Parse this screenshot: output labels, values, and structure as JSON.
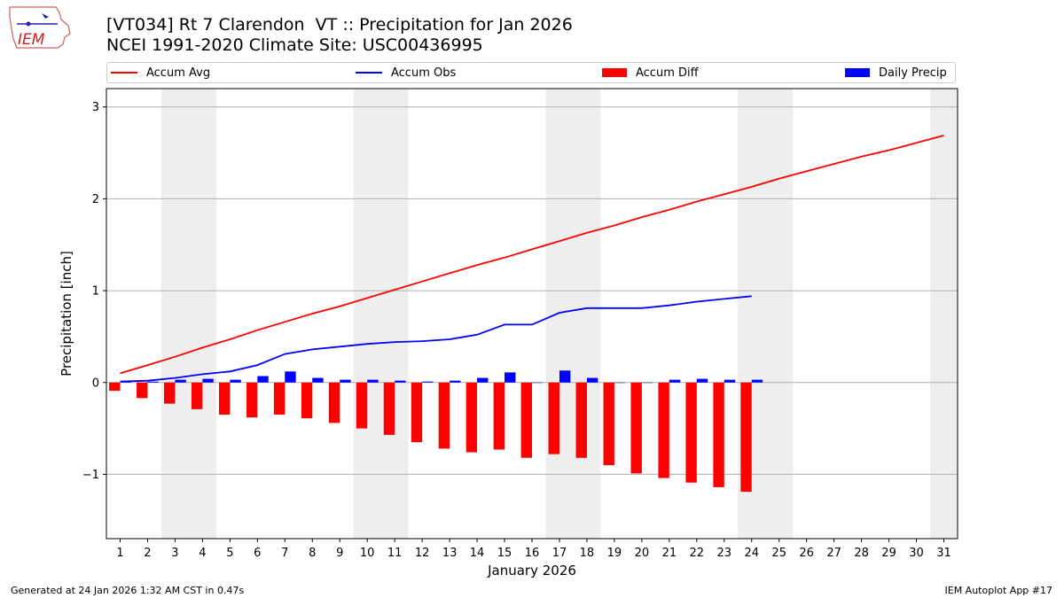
{
  "logo": {
    "text": "IEM"
  },
  "title_line1": "[VT034] Rt 7 Clarendon  VT :: Precipitation for Jan 2026",
  "title_line2": "NCEI 1991-2020 Climate Site: USC00436995",
  "footer_left": "Generated at 24 Jan 2026 1:32 AM CST in 0.47s",
  "footer_right": "IEM Autoplot App #17",
  "colors": {
    "avg": "#ff0000",
    "obs": "#0000ff",
    "diff": "#ff0000",
    "daily": "#0000ff",
    "weekend": "#eeeeee",
    "grid": "#b0b0b0"
  },
  "chart_data": {
    "type": "bar",
    "title": "[VT034] Rt 7 Clarendon  VT :: Precipitation for Jan 2026",
    "subtitle": "NCEI 1991-2020 Climate Site: USC00436995",
    "xlabel": "January 2026",
    "ylabel": "Precipitation [inch]",
    "xlim": [
      0.5,
      31.5
    ],
    "ylim": [
      -1.7,
      3.2
    ],
    "yticks": [
      -1,
      0,
      1,
      2,
      3
    ],
    "ytick_labels": [
      "−1",
      "0",
      "1",
      "2",
      "3"
    ],
    "days": [
      1,
      2,
      3,
      4,
      5,
      6,
      7,
      8,
      9,
      10,
      11,
      12,
      13,
      14,
      15,
      16,
      17,
      18,
      19,
      20,
      21,
      22,
      23,
      24,
      25,
      26,
      27,
      28,
      29,
      30,
      31
    ],
    "weekend_days": [
      3,
      4,
      10,
      11,
      17,
      18,
      24,
      25,
      31
    ],
    "legend": [
      "Accum Avg",
      "Accum Obs",
      "Accum Diff",
      "Daily Precip"
    ],
    "series": [
      {
        "name": "Accum Avg",
        "kind": "line",
        "color": "#ff0000",
        "days": [
          1,
          2,
          3,
          4,
          5,
          6,
          7,
          8,
          9,
          10,
          11,
          12,
          13,
          14,
          15,
          16,
          17,
          18,
          19,
          20,
          21,
          22,
          23,
          24,
          25,
          26,
          27,
          28,
          29,
          30,
          31
        ],
        "values": [
          0.1,
          0.19,
          0.28,
          0.38,
          0.47,
          0.57,
          0.66,
          0.75,
          0.83,
          0.92,
          1.01,
          1.1,
          1.19,
          1.28,
          1.36,
          1.45,
          1.54,
          1.63,
          1.71,
          1.8,
          1.88,
          1.97,
          2.05,
          2.13,
          2.22,
          2.3,
          2.38,
          2.46,
          2.53,
          2.61,
          2.69
        ]
      },
      {
        "name": "Accum Obs",
        "kind": "line",
        "color": "#0000ff",
        "days": [
          1,
          2,
          3,
          4,
          5,
          6,
          7,
          8,
          9,
          10,
          11,
          12,
          13,
          14,
          15,
          16,
          17,
          18,
          19,
          20,
          21,
          22,
          23,
          24
        ],
        "values": [
          0.01,
          0.02,
          0.05,
          0.09,
          0.12,
          0.19,
          0.31,
          0.36,
          0.39,
          0.42,
          0.44,
          0.45,
          0.47,
          0.52,
          0.63,
          0.63,
          0.76,
          0.81,
          0.81,
          0.81,
          0.84,
          0.88,
          0.91,
          0.94
        ]
      },
      {
        "name": "Accum Diff",
        "kind": "bar",
        "color": "#ff0000",
        "days": [
          1,
          2,
          3,
          4,
          5,
          6,
          7,
          8,
          9,
          10,
          11,
          12,
          13,
          14,
          15,
          16,
          17,
          18,
          19,
          20,
          21,
          22,
          23,
          24
        ],
        "values": [
          -0.09,
          -0.17,
          -0.23,
          -0.29,
          -0.35,
          -0.38,
          -0.35,
          -0.39,
          -0.44,
          -0.5,
          -0.57,
          -0.65,
          -0.72,
          -0.76,
          -0.73,
          -0.82,
          -0.78,
          -0.82,
          -0.9,
          -0.99,
          -1.04,
          -1.09,
          -1.14,
          -1.19
        ]
      },
      {
        "name": "Daily Precip",
        "kind": "bar",
        "color": "#0000ff",
        "days": [
          1,
          2,
          3,
          4,
          5,
          6,
          7,
          8,
          9,
          10,
          11,
          12,
          13,
          14,
          15,
          16,
          17,
          18,
          19,
          20,
          21,
          22,
          23,
          24
        ],
        "values": [
          0.01,
          0.01,
          0.03,
          0.04,
          0.03,
          0.07,
          0.12,
          0.05,
          0.03,
          0.03,
          0.02,
          0.01,
          0.02,
          0.05,
          0.11,
          0.0,
          0.13,
          0.05,
          0.0,
          0.0,
          0.03,
          0.04,
          0.03,
          0.03
        ]
      }
    ]
  }
}
